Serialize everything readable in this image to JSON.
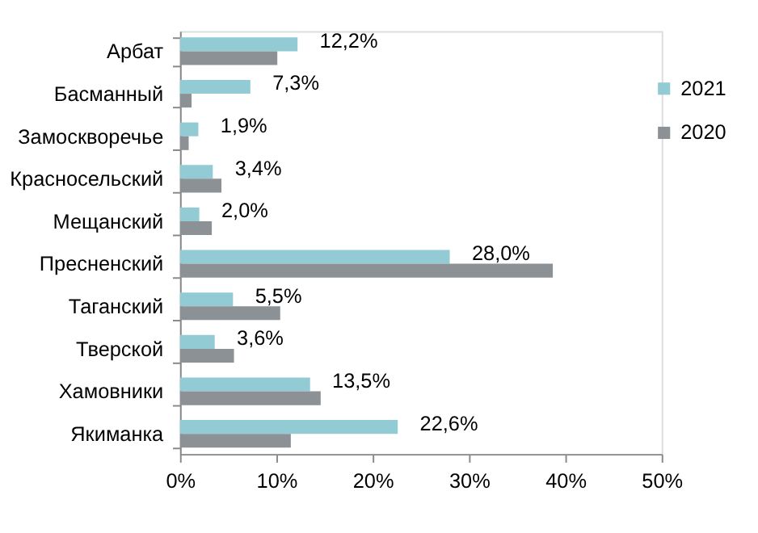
{
  "chart_data": {
    "type": "bar",
    "orientation": "horizontal",
    "categories": [
      "Арбат",
      "Басманный",
      "Замоскворечье",
      "Красносельский",
      "Мещанский",
      "Пресненский",
      "Таганский",
      "Тверской",
      "Хамовники",
      "Якиманка"
    ],
    "series": [
      {
        "name": "2021",
        "color": "#92cbd3",
        "values": [
          12.2,
          7.3,
          1.9,
          3.4,
          2.0,
          28.0,
          5.5,
          3.6,
          13.5,
          22.6
        ],
        "value_labels": [
          "12,2%",
          "7,3%",
          "1,9%",
          "3,4%",
          "2,0%",
          "28,0%",
          "5,5%",
          "3,6%",
          "13,5%",
          "22,6%"
        ]
      },
      {
        "name": "2020",
        "color": "#8c9196",
        "values": [
          10.1,
          1.2,
          0.9,
          4.3,
          3.3,
          38.7,
          10.4,
          5.6,
          14.6,
          11.5
        ]
      }
    ],
    "xlim": [
      0,
      50
    ],
    "xticks": [
      {
        "value": 0,
        "label": "0%"
      },
      {
        "value": 10,
        "label": "10%"
      },
      {
        "value": 20,
        "label": "20%"
      },
      {
        "value": 30,
        "label": "30%"
      },
      {
        "value": 40,
        "label": "40%"
      },
      {
        "value": 50,
        "label": "50%"
      }
    ],
    "grid": false,
    "legend": "top right"
  }
}
